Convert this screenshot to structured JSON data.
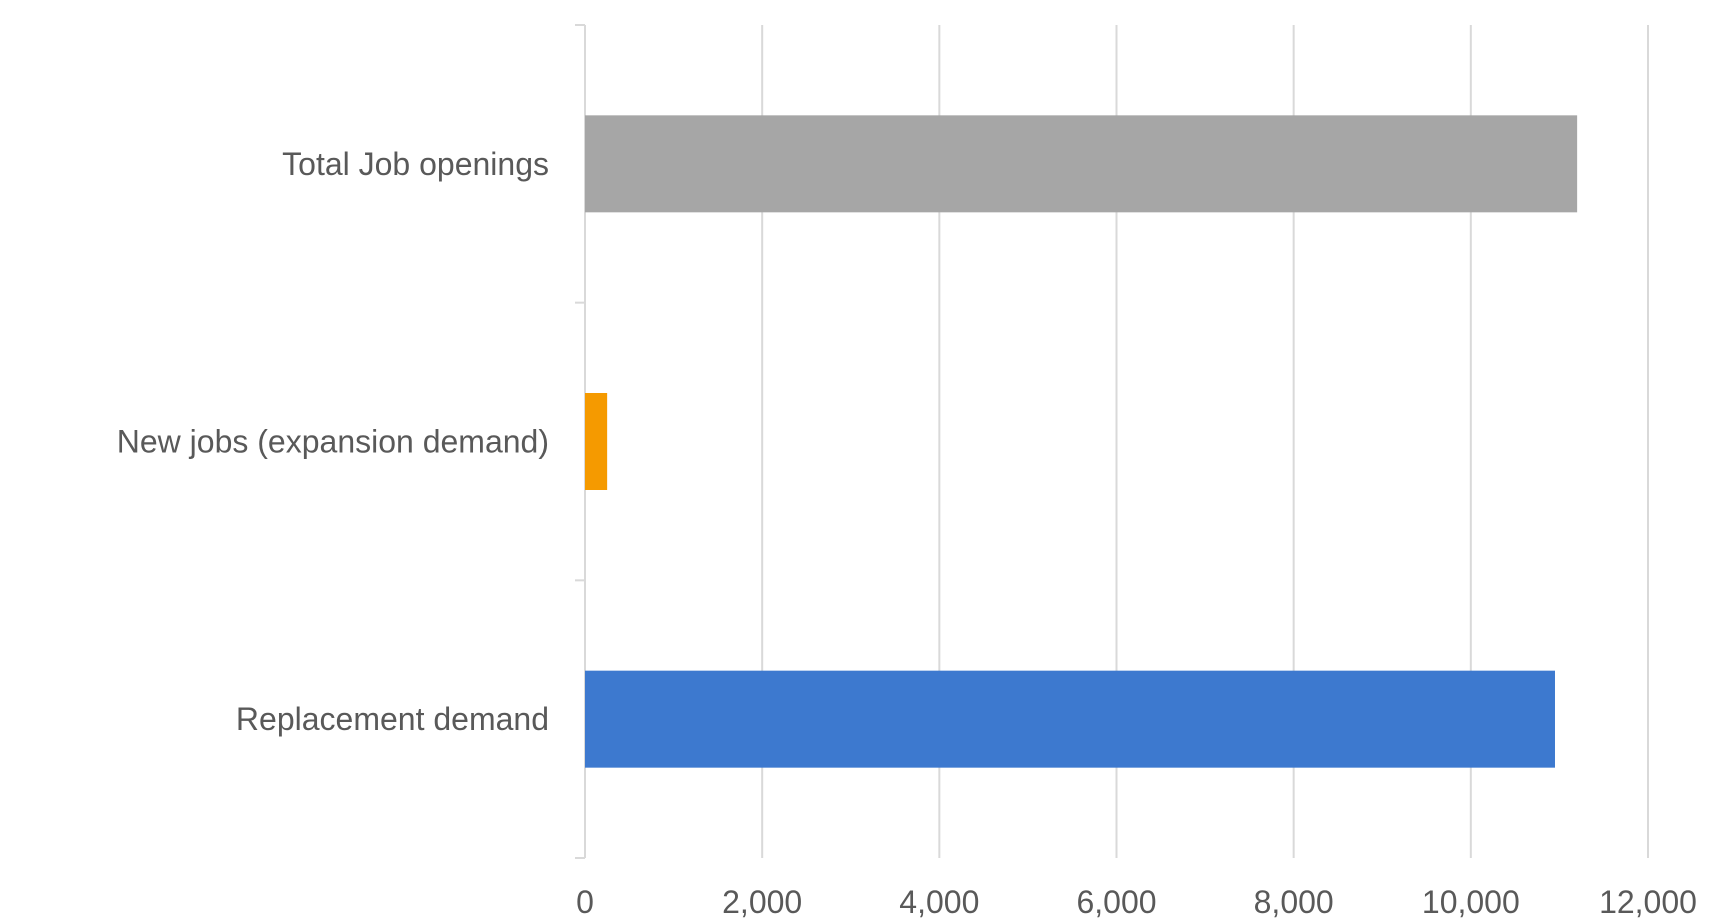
{
  "chart_data": {
    "type": "bar",
    "orientation": "horizontal",
    "categories": [
      "Total Job openings",
      "New jobs (expansion demand)",
      "Replacement demand"
    ],
    "values": [
      11200,
      250,
      10950
    ],
    "colors": [
      "#a6a6a6",
      "#f59a00",
      "#3d79cf"
    ],
    "x_ticks": [
      "0",
      "2,000",
      "4,000",
      "6,000",
      "8,000",
      "10,000",
      "12,000"
    ],
    "xlim": [
      0,
      12000
    ],
    "grid": true,
    "legend": "none"
  }
}
